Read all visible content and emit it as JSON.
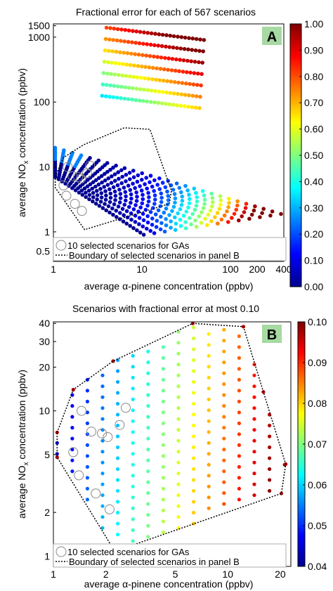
{
  "chart_data": [
    {
      "type": "scatter",
      "panel_label": "A",
      "title": "Fractional error for each of 567 scenarios",
      "xlabel": "average α-pinene concentration (ppbv)",
      "ylabel_pre": "average NO",
      "ylabel_sub": "x",
      "ylabel_post": " concentration (ppbv)",
      "xscale": "log",
      "yscale": "log",
      "xlim": [
        1,
        400
      ],
      "ylim": [
        0.35,
        1600
      ],
      "xticks": [
        1,
        10,
        100,
        200,
        400
      ],
      "xticklabels": [
        "1",
        "10",
        "100",
        "200",
        "400"
      ],
      "yticks": [
        0.5,
        1,
        10,
        100,
        1000,
        1500
      ],
      "yticklabels": [
        "0.5",
        "1",
        "10",
        "100",
        "1000",
        "1500"
      ],
      "colorbar": {
        "min": 0.0,
        "max": 1.0,
        "ticks": [
          0.0,
          0.1,
          0.2,
          0.3,
          0.4,
          0.5,
          0.6,
          0.7,
          0.8,
          0.9,
          1.0
        ],
        "ticklabels": [
          "0.00",
          "0.10",
          "0.20",
          "0.30",
          "0.40",
          "0.50",
          "0.60",
          "0.70",
          "0.80",
          "0.90",
          "1.00"
        ]
      },
      "legend": {
        "position": "bottom-left",
        "entries": [
          "10 selected scenarios for GAs",
          "Boundary of selected scenarios in panel B"
        ]
      },
      "boundary": [
        [
          1.05,
          7.1
        ],
        [
          1.3,
          14
        ],
        [
          2.2,
          22
        ],
        [
          6.3,
          40
        ],
        [
          12.3,
          38
        ],
        [
          16,
          13.5
        ],
        [
          21.5,
          4.3
        ],
        [
          20.3,
          2.7
        ],
        [
          2.25,
          1.08
        ],
        [
          1.05,
          4.8
        ],
        [
          1.05,
          7.1
        ]
      ],
      "selected": [
        [
          1.3,
          5.2
        ],
        [
          1.4,
          3.6
        ],
        [
          1.45,
          10
        ],
        [
          1.65,
          7.2
        ],
        [
          1.75,
          2.7
        ],
        [
          1.9,
          7
        ],
        [
          2.05,
          6.6
        ],
        [
          2.1,
          2.1
        ],
        [
          2.4,
          8
        ],
        [
          2.6,
          10.5
        ]
      ],
      "grid": {
        "nrows": 21,
        "ncols": 27,
        "x0": 1.0,
        "xratio": 0.2307,
        "y0_low": 7.0,
        "ylow_step": -0.1153,
        "y0_high": 1400,
        "yhigh_step": -0.158,
        "bend_low": 0.35,
        "bend_high": 0.46,
        "x_span": 1.7
      }
    },
    {
      "type": "scatter",
      "panel_label": "B",
      "title": "Scenarios with fractional error at most 0.10",
      "xlabel": "average α-pinene concentration (ppbv)",
      "ylabel_pre": "average NO",
      "ylabel_sub": "x",
      "ylabel_post": " concentration (ppbv)",
      "xscale": "log",
      "yscale": "log",
      "xlim": [
        1,
        23
      ],
      "ylim": [
        0.85,
        41
      ],
      "xticks": [
        1,
        2,
        5,
        10,
        20
      ],
      "xticklabels": [
        "1",
        "2",
        "5",
        "10",
        "20"
      ],
      "yticks": [
        1,
        2,
        5,
        10,
        20,
        30,
        40
      ],
      "yticklabels": [
        "1",
        "2",
        "5",
        "10",
        "20",
        "30",
        "40"
      ],
      "colorbar": {
        "min": 0.04,
        "max": 0.1,
        "ticks": [
          0.04,
          0.05,
          0.06,
          0.07,
          0.08,
          0.09,
          0.1
        ],
        "ticklabels": [
          "0.04",
          "0.05",
          "0.06",
          "0.07",
          "0.08",
          "0.09",
          "0.10"
        ]
      },
      "legend": {
        "position": "bottom-left",
        "entries": [
          "10 selected scenarios for GAs",
          "Boundary of selected scenarios in panel B"
        ]
      },
      "boundary": [
        [
          1.05,
          7.1
        ],
        [
          1.3,
          14
        ],
        [
          2.2,
          22
        ],
        [
          6.3,
          40
        ],
        [
          12.3,
          38
        ],
        [
          16,
          13.5
        ],
        [
          21.5,
          4.3
        ],
        [
          20.3,
          2.7
        ],
        [
          2.25,
          1.08
        ],
        [
          1.05,
          4.8
        ],
        [
          1.05,
          7.1
        ]
      ],
      "selected": [
        [
          1.3,
          5.2
        ],
        [
          1.4,
          3.6
        ],
        [
          1.45,
          10
        ],
        [
          1.65,
          7.2
        ],
        [
          1.75,
          2.7
        ],
        [
          1.9,
          7
        ],
        [
          2.05,
          6.6
        ],
        [
          2.1,
          2.1
        ],
        [
          2.4,
          8
        ],
        [
          2.6,
          10.5
        ]
      ]
    }
  ]
}
